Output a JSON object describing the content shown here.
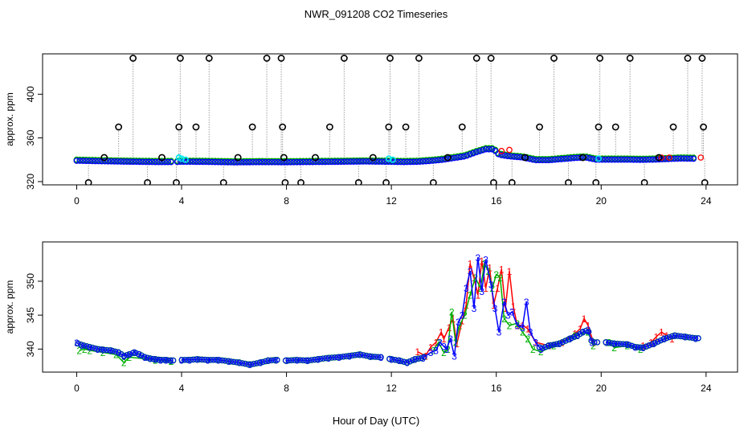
{
  "figure": {
    "title": "NWR_091208  CO2 Timeseries",
    "xlabel": "Hour of Day (UTC)"
  },
  "colors": {
    "black": "#000000",
    "blue": "#0000ff",
    "red": "#ff0000",
    "green": "#00b000",
    "cyan": "#00e5ee",
    "grey": "#a0a0a0"
  },
  "chart_data": [
    {
      "type": "scatter",
      "name": "top",
      "ylabel": "approx. ppm",
      "xlim": [
        -1.3,
        25.2
      ],
      "ylim": [
        317,
        437
      ],
      "xticks": [
        0,
        4,
        8,
        12,
        16,
        20,
        24
      ],
      "yticks": [
        320,
        360,
        400
      ],
      "baseline": [
        [
          0.0,
          339.5
        ],
        [
          1.0,
          339.0
        ],
        [
          2.0,
          338.6
        ],
        [
          3.0,
          338.3
        ],
        [
          3.8,
          338.3
        ],
        [
          4.0,
          338.6
        ],
        [
          5.0,
          338.4
        ],
        [
          6.0,
          338.0
        ],
        [
          7.0,
          338.2
        ],
        [
          8.0,
          338.1
        ],
        [
          9.0,
          338.3
        ],
        [
          10.0,
          338.5
        ],
        [
          11.0,
          338.8
        ],
        [
          12.0,
          338.5
        ],
        [
          12.5,
          338.3
        ],
        [
          13.0,
          338.5
        ],
        [
          13.6,
          339.5
        ],
        [
          14.0,
          340.5
        ],
        [
          14.4,
          342.0
        ],
        [
          14.8,
          343.5
        ],
        [
          15.2,
          347.0
        ],
        [
          15.6,
          350.0
        ],
        [
          15.9,
          350.0
        ],
        [
          16.1,
          345.0
        ],
        [
          16.5,
          343.5
        ],
        [
          17.0,
          342.5
        ],
        [
          17.5,
          340.0
        ],
        [
          18.0,
          340.0
        ],
        [
          18.5,
          341.0
        ],
        [
          19.0,
          342.0
        ],
        [
          19.4,
          342.5
        ],
        [
          19.8,
          340.5
        ],
        [
          20.2,
          340.5
        ],
        [
          21.0,
          340.5
        ],
        [
          21.5,
          340.3
        ],
        [
          22.0,
          340.5
        ],
        [
          22.5,
          341.0
        ],
        [
          23.0,
          341.5
        ],
        [
          23.6,
          341.3
        ]
      ],
      "spikes": [
        {
          "x": 0.45,
          "y": 319
        },
        {
          "x": 1.05,
          "y": 342
        },
        {
          "x": 1.6,
          "y": 370
        },
        {
          "x": 2.15,
          "y": 433
        },
        {
          "x": 2.7,
          "y": 319
        },
        {
          "x": 3.25,
          "y": 342
        },
        {
          "x": 3.8,
          "y": 319
        },
        {
          "x": 3.9,
          "y": 370
        },
        {
          "x": 3.95,
          "y": 433
        },
        {
          "x": 4.55,
          "y": 370
        },
        {
          "x": 5.05,
          "y": 433
        },
        {
          "x": 5.6,
          "y": 319
        },
        {
          "x": 6.15,
          "y": 342
        },
        {
          "x": 6.7,
          "y": 370
        },
        {
          "x": 7.25,
          "y": 433
        },
        {
          "x": 7.8,
          "y": 433
        },
        {
          "x": 7.85,
          "y": 370
        },
        {
          "x": 7.9,
          "y": 342
        },
        {
          "x": 7.95,
          "y": 319
        },
        {
          "x": 8.55,
          "y": 319
        },
        {
          "x": 9.1,
          "y": 342
        },
        {
          "x": 9.65,
          "y": 370
        },
        {
          "x": 10.2,
          "y": 433
        },
        {
          "x": 10.75,
          "y": 319
        },
        {
          "x": 11.3,
          "y": 342
        },
        {
          "x": 11.8,
          "y": 319
        },
        {
          "x": 11.9,
          "y": 370
        },
        {
          "x": 11.95,
          "y": 433
        },
        {
          "x": 12.55,
          "y": 370
        },
        {
          "x": 13.05,
          "y": 433
        },
        {
          "x": 13.6,
          "y": 319
        },
        {
          "x": 14.15,
          "y": 342
        },
        {
          "x": 14.7,
          "y": 370
        },
        {
          "x": 15.25,
          "y": 433
        },
        {
          "x": 15.8,
          "y": 433
        },
        {
          "x": 15.9,
          "y": 319
        },
        {
          "x": 16.6,
          "y": 319
        },
        {
          "x": 17.1,
          "y": 342
        },
        {
          "x": 17.65,
          "y": 370
        },
        {
          "x": 18.2,
          "y": 433
        },
        {
          "x": 18.75,
          "y": 319
        },
        {
          "x": 19.3,
          "y": 342
        },
        {
          "x": 19.8,
          "y": 319
        },
        {
          "x": 19.9,
          "y": 370
        },
        {
          "x": 19.95,
          "y": 433
        },
        {
          "x": 20.55,
          "y": 370
        },
        {
          "x": 21.1,
          "y": 433
        },
        {
          "x": 21.65,
          "y": 319
        },
        {
          "x": 22.2,
          "y": 342
        },
        {
          "x": 22.75,
          "y": 370
        },
        {
          "x": 23.3,
          "y": 433
        },
        {
          "x": 23.85,
          "y": 433
        },
        {
          "x": 23.9,
          "y": 370
        },
        {
          "x": 23.95,
          "y": 319
        }
      ],
      "cyan_markers": [
        {
          "x": 3.9,
          "y": 342
        },
        {
          "x": 4.0,
          "y": 341
        },
        {
          "x": 4.15,
          "y": 340
        },
        {
          "x": 11.9,
          "y": 341
        },
        {
          "x": 12.05,
          "y": 340
        },
        {
          "x": 19.9,
          "y": 341
        }
      ],
      "red_markers": [
        {
          "x": 16.2,
          "y": 348
        },
        {
          "x": 16.5,
          "y": 349
        },
        {
          "x": 22.3,
          "y": 342
        },
        {
          "x": 22.6,
          "y": 342
        },
        {
          "x": 23.8,
          "y": 342
        }
      ]
    },
    {
      "type": "line",
      "name": "bottom",
      "ylabel": "approx. ppm",
      "xlim": [
        -1.3,
        25.2
      ],
      "ylim": [
        336.6,
        355.8
      ],
      "xticks": [
        0,
        4,
        8,
        12,
        16,
        20,
        24
      ],
      "yticks": [
        340,
        345,
        350
      ],
      "gaps": [
        [
          3.7,
          3.9
        ],
        [
          7.7,
          7.9
        ],
        [
          11.7,
          11.9
        ],
        [
          19.85,
          20.1
        ]
      ],
      "series": [
        {
          "name": "1",
          "color": "#ff0000",
          "points": [
            [
              13.0,
              339.6
            ],
            [
              13.3,
              339.0
            ],
            [
              13.5,
              340.3
            ],
            [
              13.7,
              341.0
            ],
            [
              13.9,
              342.5
            ],
            [
              14.0,
              341.5
            ],
            [
              14.2,
              343.2
            ],
            [
              14.35,
              344.5
            ],
            [
              14.5,
              340.8
            ],
            [
              14.7,
              344.2
            ],
            [
              14.85,
              346.5
            ],
            [
              15.0,
              352.6
            ],
            [
              15.15,
              350.5
            ],
            [
              15.3,
              348.0
            ],
            [
              15.45,
              353.0
            ],
            [
              15.6,
              349.0
            ],
            [
              15.75,
              352.0
            ],
            [
              15.9,
              346.5
            ],
            [
              16.05,
              349.0
            ],
            [
              16.2,
              351.8
            ],
            [
              16.35,
              346.0
            ],
            [
              16.5,
              351.5
            ],
            [
              16.65,
              346.3
            ],
            [
              16.8,
              343.5
            ],
            [
              17.0,
              343.5
            ],
            [
              17.2,
              343.0
            ],
            [
              17.5,
              341.0
            ],
            [
              18.0,
              340.5
            ],
            [
              18.5,
              341.0
            ],
            [
              19.0,
              342.3
            ],
            [
              19.2,
              343.0
            ],
            [
              19.35,
              344.5
            ],
            [
              19.5,
              343.5
            ],
            [
              19.7,
              341.0
            ],
            [
              21.6,
              340.5
            ],
            [
              21.9,
              341.0
            ],
            [
              22.1,
              341.8
            ],
            [
              22.3,
              342.5
            ],
            [
              22.5,
              342.0
            ],
            [
              22.7,
              341.5
            ]
          ]
        },
        {
          "name": "2",
          "color": "#00b000",
          "points": [
            [
              0.1,
              339.8
            ],
            [
              0.3,
              340.0
            ],
            [
              0.5,
              339.8
            ],
            [
              1.0,
              339.5
            ],
            [
              1.5,
              339.2
            ],
            [
              1.8,
              338.0
            ],
            [
              2.0,
              338.8
            ],
            [
              3.0,
              338.4
            ],
            [
              3.6,
              338.2
            ],
            [
              13.6,
              339.8
            ],
            [
              13.8,
              341.0
            ],
            [
              14.0,
              339.5
            ],
            [
              14.15,
              340.0
            ],
            [
              14.3,
              345.5
            ],
            [
              14.45,
              341.0
            ],
            [
              14.6,
              343.5
            ],
            [
              14.8,
              345.0
            ],
            [
              15.0,
              348.0
            ],
            [
              15.2,
              350.5
            ],
            [
              15.4,
              349.0
            ],
            [
              15.55,
              352.6
            ],
            [
              15.7,
              351.5
            ],
            [
              15.85,
              349.0
            ],
            [
              16.0,
              351.0
            ],
            [
              16.15,
              350.5
            ],
            [
              16.3,
              344.5
            ],
            [
              16.5,
              343.5
            ],
            [
              16.8,
              343.8
            ],
            [
              17.0,
              342.5
            ],
            [
              17.2,
              341.5
            ],
            [
              17.4,
              340.0
            ],
            [
              17.7,
              339.6
            ],
            [
              18.2,
              340.5
            ],
            [
              19.0,
              342.0
            ],
            [
              19.5,
              342.5
            ],
            [
              19.7,
              340.5
            ],
            [
              20.3,
              341.0
            ],
            [
              20.5,
              340.2
            ],
            [
              21.0,
              340.5
            ],
            [
              21.5,
              340.0
            ]
          ]
        },
        {
          "name": "3",
          "color": "#0000ff",
          "points": [
            [
              0.0,
              340.9
            ],
            [
              0.2,
              340.6
            ],
            [
              0.5,
              340.3
            ],
            [
              0.8,
              340.0
            ],
            [
              1.0,
              339.9
            ],
            [
              1.3,
              339.8
            ],
            [
              1.6,
              339.5
            ],
            [
              1.8,
              339.0
            ],
            [
              2.0,
              339.2
            ],
            [
              2.2,
              339.5
            ],
            [
              2.4,
              339.2
            ],
            [
              2.6,
              338.8
            ],
            [
              2.8,
              338.6
            ],
            [
              3.0,
              338.5
            ],
            [
              3.2,
              338.4
            ],
            [
              3.4,
              338.4
            ],
            [
              3.6,
              338.3
            ],
            [
              4.0,
              338.4
            ],
            [
              4.3,
              338.4
            ],
            [
              4.6,
              338.5
            ],
            [
              5.0,
              338.4
            ],
            [
              5.4,
              338.4
            ],
            [
              5.8,
              338.2
            ],
            [
              6.2,
              338.0
            ],
            [
              6.6,
              337.7
            ],
            [
              7.0,
              338.0
            ],
            [
              7.3,
              338.3
            ],
            [
              7.6,
              338.4
            ],
            [
              8.0,
              338.3
            ],
            [
              8.4,
              338.4
            ],
            [
              8.8,
              338.3
            ],
            [
              9.2,
              338.5
            ],
            [
              9.6,
              338.7
            ],
            [
              10.0,
              338.8
            ],
            [
              10.4,
              339.0
            ],
            [
              10.8,
              339.2
            ],
            [
              11.2,
              338.9
            ],
            [
              11.6,
              338.8
            ],
            [
              12.0,
              338.5
            ],
            [
              12.3,
              338.3
            ],
            [
              12.6,
              338.0
            ],
            [
              12.9,
              338.5
            ],
            [
              13.2,
              338.7
            ],
            [
              13.5,
              339.5
            ],
            [
              13.7,
              339.8
            ],
            [
              13.85,
              341.0
            ],
            [
              14.0,
              340.4
            ],
            [
              14.1,
              340.0
            ],
            [
              14.25,
              341.5
            ],
            [
              14.4,
              339.0
            ],
            [
              14.55,
              344.0
            ],
            [
              14.7,
              345.0
            ],
            [
              14.85,
              349.0
            ],
            [
              15.0,
              351.5
            ],
            [
              15.15,
              346.0
            ],
            [
              15.3,
              353.5
            ],
            [
              15.45,
              348.5
            ],
            [
              15.6,
              353.2
            ],
            [
              15.8,
              349.5
            ],
            [
              15.95,
              346.0
            ],
            [
              16.1,
              342.5
            ],
            [
              16.3,
              347.0
            ],
            [
              16.45,
              345.0
            ],
            [
              16.6,
              345.5
            ],
            [
              16.8,
              343.5
            ],
            [
              17.0,
              343.2
            ],
            [
              17.15,
              347.0
            ],
            [
              17.3,
              342.5
            ],
            [
              17.5,
              341.0
            ],
            [
              17.7,
              340.0
            ],
            [
              18.0,
              340.5
            ],
            [
              18.4,
              340.8
            ],
            [
              18.8,
              341.5
            ],
            [
              19.1,
              342.0
            ],
            [
              19.3,
              342.5
            ],
            [
              19.5,
              342.8
            ],
            [
              19.65,
              341.0
            ],
            [
              20.2,
              341.0
            ],
            [
              20.5,
              340.8
            ],
            [
              21.0,
              340.7
            ],
            [
              21.3,
              340.3
            ],
            [
              21.6,
              340.2
            ],
            [
              22.0,
              340.8
            ],
            [
              22.4,
              341.5
            ],
            [
              22.8,
              342.0
            ],
            [
              23.2,
              341.8
            ],
            [
              23.6,
              341.6
            ]
          ]
        }
      ]
    }
  ]
}
